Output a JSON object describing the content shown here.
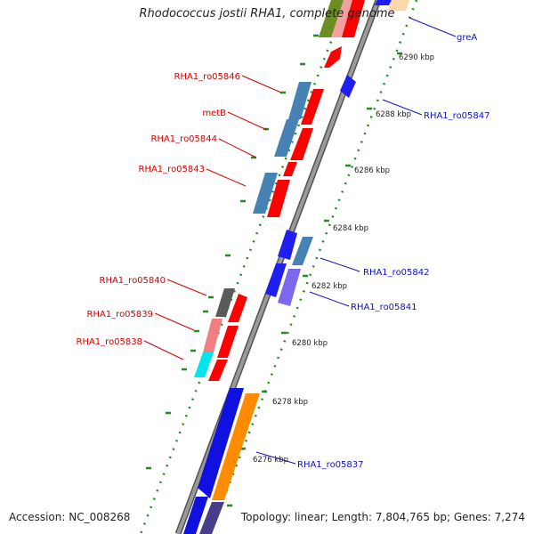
{
  "title": "Rhodococcus jostii RHA1, complete genome",
  "accession": "Accession: NC_008268",
  "summary": "Topology: linear; Length: 7,804,765 bp; Genes: 7,274",
  "colors": {
    "left_labels": "#d40000",
    "right_labels": "#1010c0",
    "backbone": "#888888",
    "ticks": "#228b22"
  },
  "scale_labels": [
    "6290 kbp",
    "6288 kbp",
    "6286 kbp",
    "6284 kbp",
    "6282 kbp",
    "6280 kbp",
    "6278 kbp",
    "6276 kbp"
  ],
  "left_labels": [
    "RHA1_ro05846",
    "metB",
    "RHA1_ro05844",
    "RHA1_ro05843",
    "RHA1_ro05840",
    "RHA1_ro05839",
    "RHA1_ro05838"
  ],
  "right_labels": [
    "greA",
    "RHA1_ro05847",
    "RHA1_ro05842",
    "RHA1_ro05841",
    "RHA1_ro05837"
  ]
}
